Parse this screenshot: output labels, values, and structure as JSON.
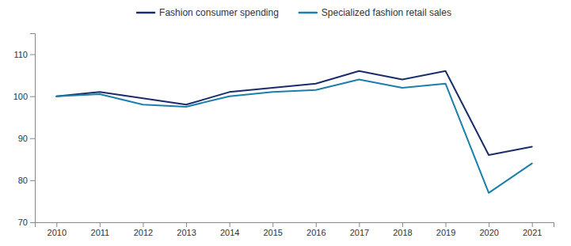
{
  "chart_data": {
    "type": "line",
    "x": [
      2010,
      2011,
      2012,
      2013,
      2014,
      2015,
      2016,
      2017,
      2018,
      2019,
      2020,
      2021
    ],
    "series": [
      {
        "name": "Fashion consumer spending",
        "color": "#1a2d6b",
        "values": [
          100,
          101,
          99.5,
          98,
          101,
          102,
          103,
          106,
          104,
          106,
          86,
          88
        ]
      },
      {
        "name": "Specialized fashion retail sales",
        "color": "#1a7fac",
        "values": [
          100,
          100.5,
          98,
          97.5,
          100,
          101,
          101.5,
          104,
          102,
          103,
          77,
          84
        ]
      }
    ],
    "xlim": [
      2009.5,
      2021.5
    ],
    "xticks": [
      2010,
      2011,
      2012,
      2013,
      2014,
      2015,
      2016,
      2017,
      2018,
      2019,
      2020,
      2021
    ],
    "ylim": [
      70,
      115
    ],
    "yticks": [
      70,
      80,
      90,
      100,
      110
    ],
    "grid": false,
    "legend": "top"
  }
}
